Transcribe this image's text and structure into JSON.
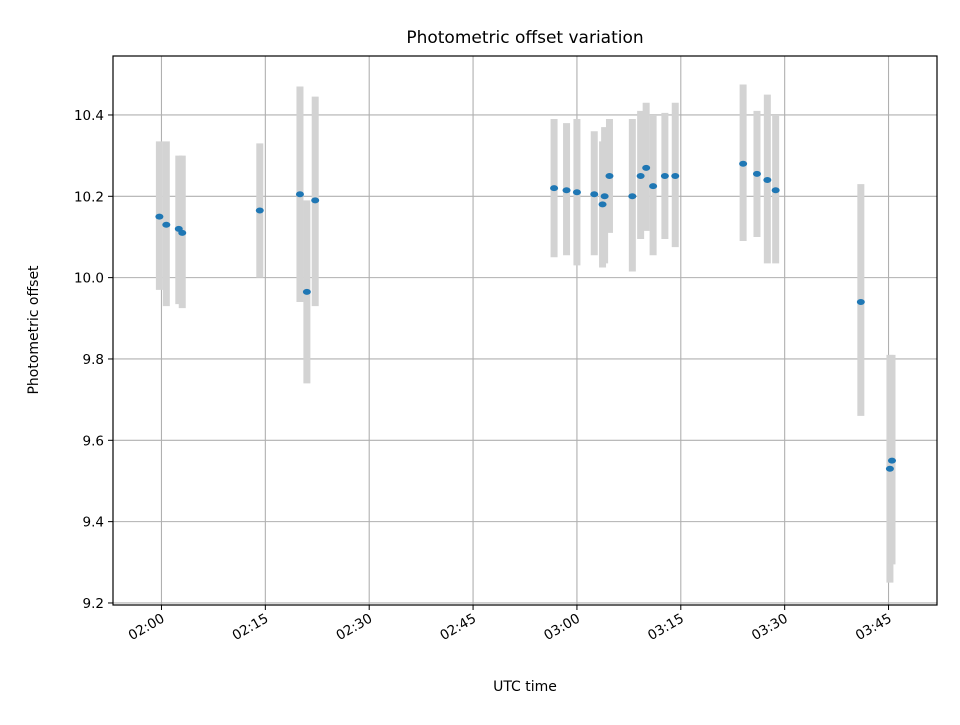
{
  "chart_data": {
    "type": "scatter",
    "title": "Photometric offset variation",
    "xlabel": "UTC time",
    "ylabel": "Photometric offset",
    "x_unit": "minutes after 02:00 UTC",
    "xlim": [
      "01:53",
      "03:52"
    ],
    "ylim": [
      9.195,
      10.545
    ],
    "x_ticks": [
      "02:00",
      "02:15",
      "02:30",
      "02:45",
      "03:00",
      "03:15",
      "03:30",
      "03:45"
    ],
    "y_ticks": [
      9.2,
      9.4,
      9.6,
      9.8,
      10.0,
      10.2,
      10.4
    ],
    "y_tick_labels": [
      "9.2",
      "9.4",
      "9.6",
      "9.8",
      "10.0",
      "10.2",
      "10.4"
    ],
    "grid": true,
    "marker_color": "#1f77b4",
    "errorbar_color": "#d3d3d3",
    "points": [
      {
        "t": "01:59.7",
        "y": 10.15,
        "lo": 9.97,
        "hi": 10.335
      },
      {
        "t": "02:00.7",
        "y": 10.13,
        "lo": 9.93,
        "hi": 10.335
      },
      {
        "t": "02:02.5",
        "y": 10.12,
        "lo": 9.935,
        "hi": 10.3
      },
      {
        "t": "02:03.0",
        "y": 10.11,
        "lo": 9.925,
        "hi": 10.3
      },
      {
        "t": "02:14.2",
        "y": 10.165,
        "lo": 10.0,
        "hi": 10.33
      },
      {
        "t": "02:20.0",
        "y": 10.205,
        "lo": 9.94,
        "hi": 10.47
      },
      {
        "t": "02:21.0",
        "y": 9.965,
        "lo": 9.74,
        "hi": 10.19
      },
      {
        "t": "02:22.2",
        "y": 10.19,
        "lo": 9.93,
        "hi": 10.445
      },
      {
        "t": "02:56.7",
        "y": 10.22,
        "lo": 10.05,
        "hi": 10.39
      },
      {
        "t": "02:58.5",
        "y": 10.215,
        "lo": 10.055,
        "hi": 10.38
      },
      {
        "t": "03:00.0",
        "y": 10.21,
        "lo": 10.03,
        "hi": 10.39
      },
      {
        "t": "03:02.5",
        "y": 10.205,
        "lo": 10.055,
        "hi": 10.36
      },
      {
        "t": "03:03.7",
        "y": 10.18,
        "lo": 10.025,
        "hi": 10.335
      },
      {
        "t": "03:04.0",
        "y": 10.2,
        "lo": 10.035,
        "hi": 10.37
      },
      {
        "t": "03:04.7",
        "y": 10.25,
        "lo": 10.11,
        "hi": 10.39
      },
      {
        "t": "03:08.0",
        "y": 10.2,
        "lo": 10.015,
        "hi": 10.39
      },
      {
        "t": "03:09.2",
        "y": 10.25,
        "lo": 10.095,
        "hi": 10.41
      },
      {
        "t": "03:10.0",
        "y": 10.27,
        "lo": 10.115,
        "hi": 10.43
      },
      {
        "t": "03:11.0",
        "y": 10.225,
        "lo": 10.055,
        "hi": 10.4
      },
      {
        "t": "03:12.7",
        "y": 10.25,
        "lo": 10.095,
        "hi": 10.405
      },
      {
        "t": "03:14.2",
        "y": 10.25,
        "lo": 10.075,
        "hi": 10.43
      },
      {
        "t": "03:24.0",
        "y": 10.28,
        "lo": 10.09,
        "hi": 10.475
      },
      {
        "t": "03:26.0",
        "y": 10.255,
        "lo": 10.1,
        "hi": 10.41
      },
      {
        "t": "03:27.5",
        "y": 10.24,
        "lo": 10.035,
        "hi": 10.45
      },
      {
        "t": "03:28.7",
        "y": 10.215,
        "lo": 10.035,
        "hi": 10.4
      },
      {
        "t": "03:41.0",
        "y": 9.94,
        "lo": 9.66,
        "hi": 10.23
      },
      {
        "t": "03:45.2",
        "y": 9.53,
        "lo": 9.25,
        "hi": 9.81
      },
      {
        "t": "03:45.5",
        "y": 9.55,
        "lo": 9.295,
        "hi": 9.81
      }
    ]
  }
}
